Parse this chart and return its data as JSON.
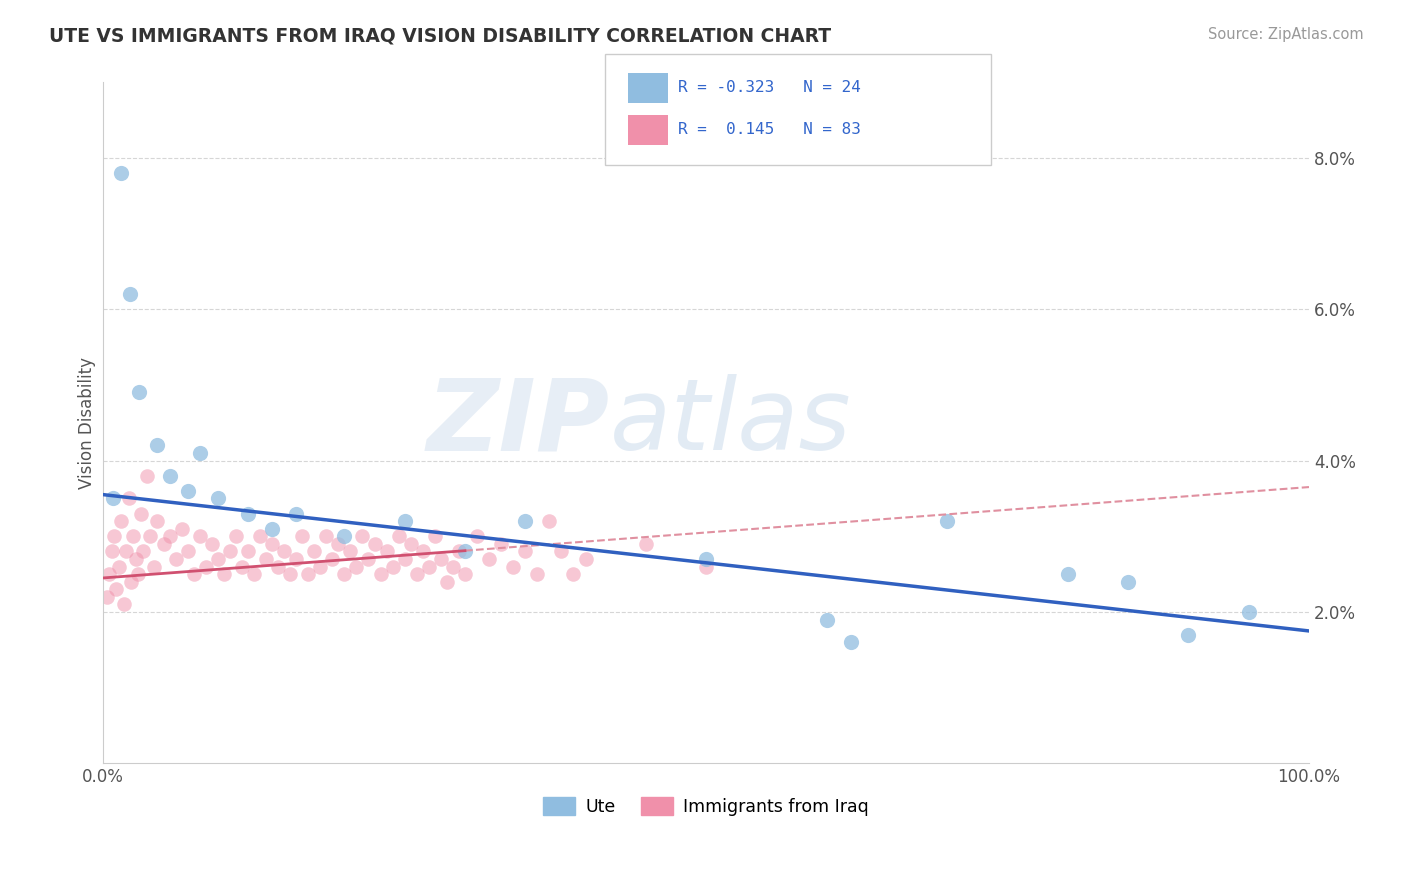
{
  "title": "UTE VS IMMIGRANTS FROM IRAQ VISION DISABILITY CORRELATION CHART",
  "source": "Source: ZipAtlas.com",
  "ylabel": "Vision Disability",
  "xlim": [
    0,
    100
  ],
  "ylim": [
    0,
    9.0
  ],
  "ytick_positions": [
    2,
    4,
    6,
    8
  ],
  "ytick_labels": [
    "2.0%",
    "4.0%",
    "6.0%",
    "8.0%"
  ],
  "bottom_legend": [
    "Ute",
    "Immigrants from Iraq"
  ],
  "ute_color": "#90bde0",
  "iraq_color": "#f090aa",
  "ute_line_color": "#3060c0",
  "iraq_line_color": "#d05070",
  "iraq_dash_color": "#e090a0",
  "watermark_zip": "ZIP",
  "watermark_atlas": "atlas",
  "ute_points": [
    [
      0.8,
      3.5
    ],
    [
      1.5,
      7.8
    ],
    [
      2.2,
      6.2
    ],
    [
      3.0,
      4.9
    ],
    [
      4.5,
      4.2
    ],
    [
      5.5,
      3.8
    ],
    [
      7.0,
      3.6
    ],
    [
      8.0,
      4.1
    ],
    [
      9.5,
      3.5
    ],
    [
      12.0,
      3.3
    ],
    [
      14.0,
      3.1
    ],
    [
      16.0,
      3.3
    ],
    [
      20.0,
      3.0
    ],
    [
      25.0,
      3.2
    ],
    [
      30.0,
      2.8
    ],
    [
      35.0,
      3.2
    ],
    [
      50.0,
      2.7
    ],
    [
      60.0,
      1.9
    ],
    [
      62.0,
      1.6
    ],
    [
      70.0,
      3.2
    ],
    [
      80.0,
      2.5
    ],
    [
      85.0,
      2.4
    ],
    [
      90.0,
      1.7
    ],
    [
      95.0,
      2.0
    ]
  ],
  "iraq_points": [
    [
      0.3,
      2.2
    ],
    [
      0.5,
      2.5
    ],
    [
      0.7,
      2.8
    ],
    [
      0.9,
      3.0
    ],
    [
      1.1,
      2.3
    ],
    [
      1.3,
      2.6
    ],
    [
      1.5,
      3.2
    ],
    [
      1.7,
      2.1
    ],
    [
      1.9,
      2.8
    ],
    [
      2.1,
      3.5
    ],
    [
      2.3,
      2.4
    ],
    [
      2.5,
      3.0
    ],
    [
      2.7,
      2.7
    ],
    [
      2.9,
      2.5
    ],
    [
      3.1,
      3.3
    ],
    [
      3.3,
      2.8
    ],
    [
      3.6,
      3.8
    ],
    [
      3.9,
      3.0
    ],
    [
      4.2,
      2.6
    ],
    [
      4.5,
      3.2
    ],
    [
      5.0,
      2.9
    ],
    [
      5.5,
      3.0
    ],
    [
      6.0,
      2.7
    ],
    [
      6.5,
      3.1
    ],
    [
      7.0,
      2.8
    ],
    [
      7.5,
      2.5
    ],
    [
      8.0,
      3.0
    ],
    [
      8.5,
      2.6
    ],
    [
      9.0,
      2.9
    ],
    [
      9.5,
      2.7
    ],
    [
      10.0,
      2.5
    ],
    [
      10.5,
      2.8
    ],
    [
      11.0,
      3.0
    ],
    [
      11.5,
      2.6
    ],
    [
      12.0,
      2.8
    ],
    [
      12.5,
      2.5
    ],
    [
      13.0,
      3.0
    ],
    [
      13.5,
      2.7
    ],
    [
      14.0,
      2.9
    ],
    [
      14.5,
      2.6
    ],
    [
      15.0,
      2.8
    ],
    [
      15.5,
      2.5
    ],
    [
      16.0,
      2.7
    ],
    [
      16.5,
      3.0
    ],
    [
      17.0,
      2.5
    ],
    [
      17.5,
      2.8
    ],
    [
      18.0,
      2.6
    ],
    [
      18.5,
      3.0
    ],
    [
      19.0,
      2.7
    ],
    [
      19.5,
      2.9
    ],
    [
      20.0,
      2.5
    ],
    [
      20.5,
      2.8
    ],
    [
      21.0,
      2.6
    ],
    [
      21.5,
      3.0
    ],
    [
      22.0,
      2.7
    ],
    [
      22.5,
      2.9
    ],
    [
      23.0,
      2.5
    ],
    [
      23.5,
      2.8
    ],
    [
      24.0,
      2.6
    ],
    [
      24.5,
      3.0
    ],
    [
      25.0,
      2.7
    ],
    [
      25.5,
      2.9
    ],
    [
      26.0,
      2.5
    ],
    [
      26.5,
      2.8
    ],
    [
      27.0,
      2.6
    ],
    [
      27.5,
      3.0
    ],
    [
      28.0,
      2.7
    ],
    [
      28.5,
      2.4
    ],
    [
      29.0,
      2.6
    ],
    [
      29.5,
      2.8
    ],
    [
      30.0,
      2.5
    ],
    [
      31.0,
      3.0
    ],
    [
      32.0,
      2.7
    ],
    [
      33.0,
      2.9
    ],
    [
      34.0,
      2.6
    ],
    [
      35.0,
      2.8
    ],
    [
      36.0,
      2.5
    ],
    [
      37.0,
      3.2
    ],
    [
      38.0,
      2.8
    ],
    [
      39.0,
      2.5
    ],
    [
      40.0,
      2.7
    ],
    [
      45.0,
      2.9
    ],
    [
      50.0,
      2.6
    ]
  ],
  "ute_intercept": 3.55,
  "ute_slope": -0.018,
  "iraq_intercept": 2.45,
  "iraq_slope": 0.012
}
